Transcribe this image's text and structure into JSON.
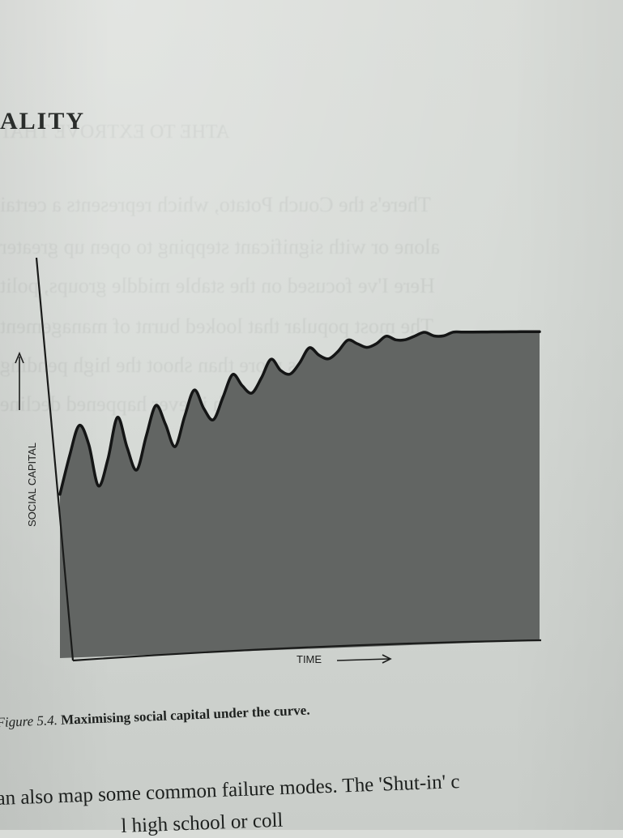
{
  "running_head": "ALITY",
  "chart_data": {
    "type": "area",
    "xlabel": "TIME",
    "ylabel": "SOCIAL CAPITAL",
    "grid": false,
    "legend": "none",
    "x": [
      0,
      2,
      4,
      6,
      8,
      10,
      12,
      14,
      16,
      18,
      20,
      22,
      24,
      26,
      28,
      30,
      32,
      34,
      36,
      38,
      40,
      42,
      44,
      46,
      48,
      50,
      52,
      54,
      56,
      58,
      60,
      62,
      64,
      66,
      68,
      70,
      72,
      74,
      76,
      78,
      80,
      82,
      84,
      86,
      88,
      90,
      92,
      94,
      96,
      98,
      100
    ],
    "values": [
      43,
      53,
      61,
      56,
      45,
      52,
      63,
      55,
      49,
      58,
      66,
      61,
      55,
      63,
      70,
      65,
      62,
      68,
      74,
      71,
      69,
      73,
      78,
      75,
      74,
      77,
      81,
      79,
      78,
      80,
      83,
      82,
      81,
      82,
      84,
      83,
      83,
      84,
      85,
      84,
      84,
      85,
      85,
      85,
      85,
      85,
      85,
      85,
      85,
      85,
      85
    ],
    "colors": {
      "fill": "#626563",
      "curve": "#141515",
      "axis": "#1a1b1a"
    }
  },
  "caption": {
    "label": "Figure 5.4.",
    "text": "Maximising social capital under the curve."
  },
  "body_text": {
    "line1": "an also map some common failure modes. The 'Shut-in' c",
    "line2": "l high school or coll"
  },
  "ghost_text": [
    "ATHE TO EXTROVE THAT",
    "There's the Couch Potato, which represents a certai",
    "alone or with significant stepping to open up greater",
    "Here I've focused on the stable middle groups, polit",
    "The most popular that looked burnt of management",
    "the ones as more than shoot the high pending",
    "hebbane which is ever happened decline"
  ]
}
